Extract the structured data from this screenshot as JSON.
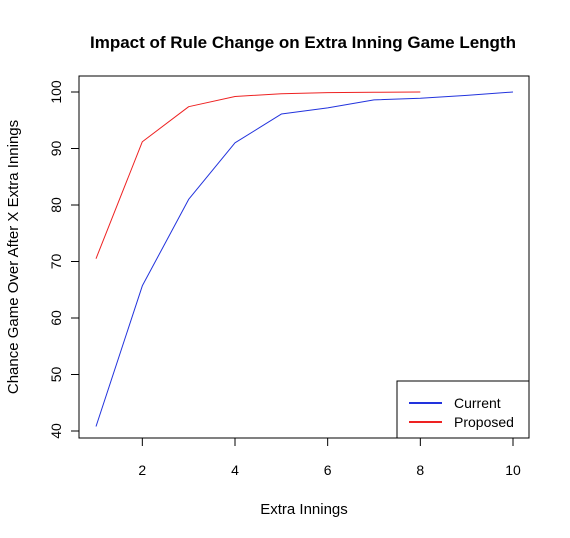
{
  "chart_data": {
    "type": "line",
    "title": "Impact of Rule Change on Extra Inning Game Length",
    "xlabel": "Extra Innings",
    "ylabel": "Chance Game Over After X Extra Innings",
    "xlim": [
      1,
      10
    ],
    "ylim": [
      40,
      100
    ],
    "x_ticks": [
      2,
      4,
      6,
      8,
      10
    ],
    "y_ticks": [
      40,
      50,
      60,
      70,
      80,
      90,
      100
    ],
    "grid": false,
    "legend_position": "bottom-right",
    "series": [
      {
        "name": "Current",
        "color": "#2233dd",
        "x": [
          1,
          2,
          3,
          4,
          5,
          6,
          7,
          8,
          9,
          10
        ],
        "values": [
          40.8,
          65.7,
          81.0,
          91.0,
          96.1,
          97.2,
          98.6,
          98.9,
          99.4,
          100.0
        ]
      },
      {
        "name": "Proposed",
        "color": "#ee2222",
        "x": [
          1,
          2,
          3,
          4,
          5,
          6,
          7,
          8
        ],
        "values": [
          70.5,
          91.2,
          97.4,
          99.2,
          99.7,
          99.9,
          99.95,
          100.0
        ]
      }
    ]
  }
}
